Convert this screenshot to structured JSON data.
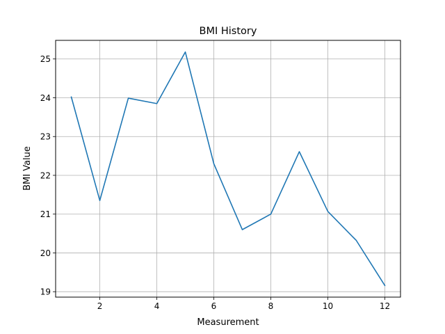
{
  "chart_data": {
    "type": "line",
    "title": "BMI History",
    "xlabel": "Measurement",
    "ylabel": "BMI Value",
    "x": [
      1,
      2,
      3,
      4,
      5,
      6,
      7,
      8,
      9,
      10,
      11,
      12
    ],
    "series": [
      {
        "values": [
          24.02,
          21.35,
          23.99,
          23.85,
          25.18,
          22.3,
          20.6,
          21.0,
          22.61,
          21.07,
          20.32,
          19.16
        ],
        "color": "#1f77b4"
      }
    ],
    "xlim": [
      0.45,
      12.55
    ],
    "ylim": [
      18.86,
      25.48
    ],
    "xticks": [
      2,
      4,
      6,
      8,
      10,
      12
    ],
    "yticks": [
      19,
      20,
      21,
      22,
      23,
      24,
      25
    ],
    "grid": true,
    "legend": "none"
  }
}
